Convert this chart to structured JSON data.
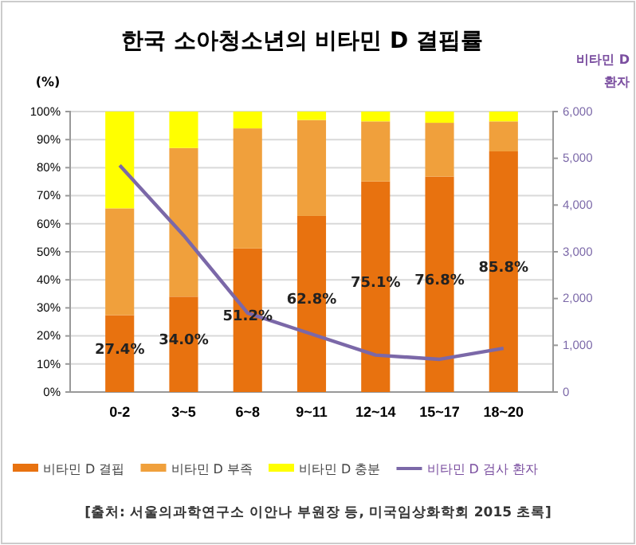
{
  "chart_data": {
    "type": "bar",
    "title": "한국 소아청소년의 비타민 D 결핍률",
    "ylabel": "(%)",
    "y2label": "비타민 D 환자",
    "categories": [
      "0-2",
      "3~5",
      "6~8",
      "9~11",
      "12~14",
      "15~17",
      "18~20"
    ],
    "stacked": true,
    "series": [
      {
        "name": "비타민 D 결핍",
        "color": "#e8720f",
        "values": [
          27.4,
          34.0,
          51.2,
          62.8,
          75.1,
          76.8,
          85.8
        ],
        "value_labels": [
          "27.4%",
          "34.0%",
          "51.2%",
          "62.8%",
          "75.1%",
          "76.8%",
          "85.8%"
        ]
      },
      {
        "name": "비타민 D 부족",
        "color": "#f0a03c",
        "values": [
          38.1,
          53.0,
          42.8,
          34.2,
          21.4,
          19.2,
          10.7
        ]
      },
      {
        "name": "비타민 D 충분",
        "color": "#ffff00",
        "values": [
          34.5,
          13.0,
          6.0,
          3.0,
          3.5,
          4.0,
          3.5
        ]
      },
      {
        "name": "비타민 D 검사 환자",
        "type": "line",
        "axis": "y2",
        "color": "#7b68a8",
        "values": [
          4850,
          3350,
          1690,
          1240,
          790,
          700,
          935
        ]
      }
    ],
    "ylim": [
      0,
      100
    ],
    "yticks": [
      {
        "value": 0,
        "label": "0%"
      },
      {
        "value": 10,
        "label": "10%"
      },
      {
        "value": 20,
        "label": "20%"
      },
      {
        "value": 30,
        "label": "30%"
      },
      {
        "value": 40,
        "label": "40%"
      },
      {
        "value": 50,
        "label": "50%"
      },
      {
        "value": 60,
        "label": "60%"
      },
      {
        "value": 70,
        "label": "70%"
      },
      {
        "value": 80,
        "label": "80%"
      },
      {
        "value": 90,
        "label": "90%"
      },
      {
        "value": 100,
        "label": "100%"
      }
    ],
    "y2lim": [
      0,
      6000
    ],
    "y2ticks": [
      0,
      {
        "value": 1000,
        "label": "1,000"
      },
      {
        "value": 2000,
        "label": "2,000"
      },
      {
        "value": 3000,
        "label": "3,000"
      },
      {
        "value": 4000,
        "label": "4,000"
      },
      {
        "value": 5000,
        "label": "5,000"
      },
      {
        "value": 6000,
        "label": "6,000"
      }
    ],
    "grid": "y",
    "legend": "bottom",
    "marker": "none",
    "annotations": [
      "[출처: 서울의과학연구소 이안나 부원장 등, 미국임상화학회 2015 초록]"
    ]
  }
}
